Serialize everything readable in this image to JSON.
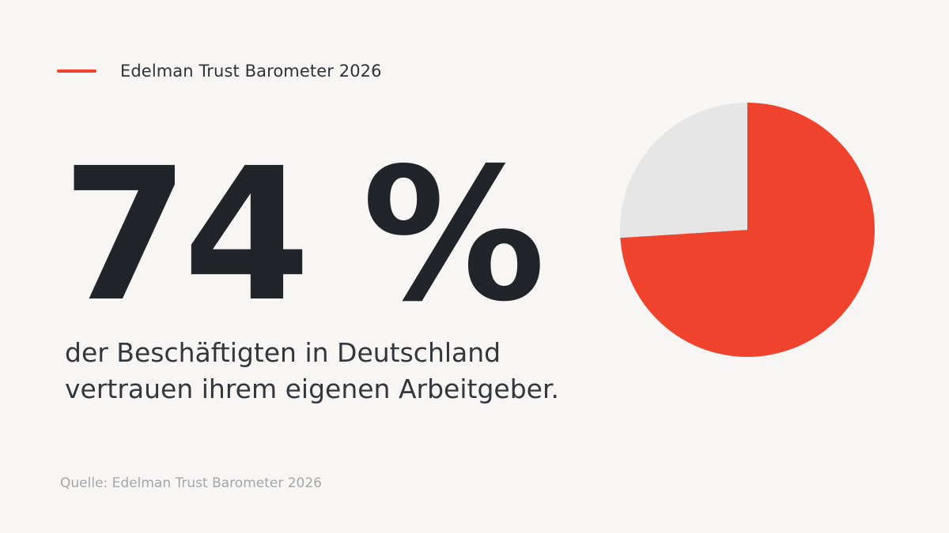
{
  "header": {
    "kicker": "Edelman Trust Barometer 2026"
  },
  "headline": {
    "value": "74 %",
    "description_lines": [
      "der Beschäftigten in Deutschland",
      "vertrauen ihrem eigenen Arbeitgeber."
    ]
  },
  "footer": {
    "source": "Quelle: Edelman Trust Barometer 2026"
  },
  "colors": {
    "accent": "#f0432d",
    "remainder": "#e6e6e6",
    "background": "#f7f6f4",
    "text": "#23272b"
  },
  "chart_data": {
    "type": "pie",
    "categories": [
      "",
      ""
    ],
    "values": [
      74,
      26
    ],
    "unit": "%",
    "start_angle_deg": 0,
    "direction": "clockwise",
    "colors": [
      "#f0432d",
      "#e6e6e6"
    ],
    "legend": "none",
    "title": ""
  }
}
